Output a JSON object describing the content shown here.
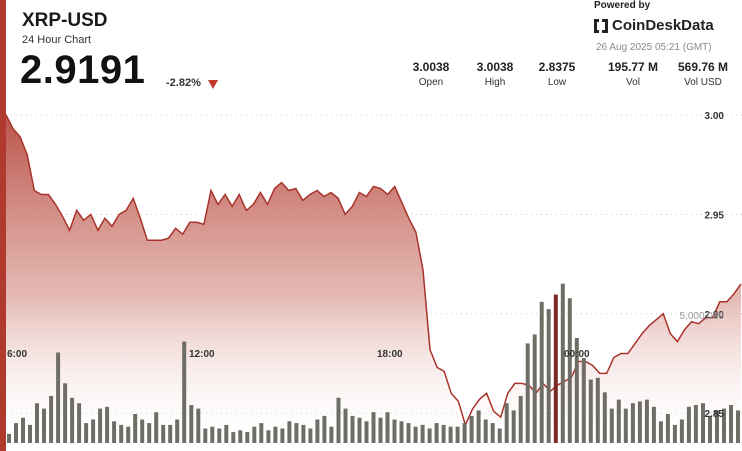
{
  "header": {
    "symbol": "XRP-USD",
    "subtitle": "24 Hour Chart",
    "price": "2.9191",
    "change": "-2.82%",
    "powered_by": "Powered by",
    "brand": "CoinDeskData",
    "timestamp": "26 Aug 2025 05:21 (GMT)"
  },
  "stats": [
    {
      "value": "3.0038",
      "label": "Open"
    },
    {
      "value": "3.0038",
      "label": "High"
    },
    {
      "value": "2.8375",
      "label": "Low"
    },
    {
      "value": "195.77 M",
      "label": "Vol"
    },
    {
      "value": "569.76 M",
      "label": "Vol USD"
    }
  ],
  "colors": {
    "accent": "#b03a2e",
    "down": "#c0392b",
    "volume_bar": "#6e6e66",
    "volume_highlight": "#7a2a22"
  },
  "chart_data": {
    "type": "area",
    "x_tick_labels": [
      "6:00",
      "12:00",
      "18:00",
      "00:00"
    ],
    "y_tick_labels": [
      "3.00",
      "2.95",
      "2.90",
      "2.85"
    ],
    "ylim": [
      2.835,
      3.005
    ],
    "volume_label": "5,000,000",
    "price_series": [
      3.0,
      2.993,
      2.989,
      2.98,
      2.962,
      2.96,
      2.96,
      2.955,
      2.949,
      2.942,
      2.952,
      2.947,
      2.95,
      2.942,
      2.948,
      2.944,
      2.95,
      2.952,
      2.958,
      2.948,
      2.937,
      2.937,
      2.937,
      2.938,
      2.943,
      2.94,
      2.946,
      2.946,
      2.945,
      2.962,
      2.955,
      2.96,
      2.954,
      2.96,
      2.952,
      2.955,
      2.961,
      2.955,
      2.963,
      2.966,
      2.962,
      2.963,
      2.957,
      2.96,
      2.962,
      2.959,
      2.961,
      2.958,
      2.95,
      2.954,
      2.961,
      2.959,
      2.964,
      2.963,
      2.96,
      2.964,
      2.956,
      2.948,
      2.941,
      2.922,
      2.882,
      2.873,
      2.871,
      2.86,
      2.856,
      2.844,
      2.852,
      2.857,
      2.86,
      2.851,
      2.848,
      2.86,
      2.865,
      2.865,
      2.864,
      2.86,
      2.865,
      2.861,
      2.864,
      2.866,
      2.868,
      2.876,
      2.876,
      2.874,
      2.87,
      2.87,
      2.878,
      2.88,
      2.88,
      2.885,
      2.89,
      2.894,
      2.897,
      2.9,
      2.89,
      2.886,
      2.892,
      2.896,
      2.895,
      2.898,
      2.898,
      2.906,
      2.906,
      2.91,
      2.915
    ],
    "volume_series": [
      0.05,
      0.11,
      0.14,
      0.1,
      0.22,
      0.19,
      0.26,
      0.5,
      0.33,
      0.25,
      0.22,
      0.11,
      0.13,
      0.19,
      0.2,
      0.12,
      0.1,
      0.09,
      0.16,
      0.13,
      0.11,
      0.17,
      0.1,
      0.1,
      0.13,
      0.56,
      0.21,
      0.19,
      0.08,
      0.09,
      0.08,
      0.1,
      0.06,
      0.07,
      0.06,
      0.09,
      0.11,
      0.07,
      0.09,
      0.08,
      0.12,
      0.11,
      0.1,
      0.08,
      0.13,
      0.15,
      0.09,
      0.25,
      0.19,
      0.15,
      0.14,
      0.12,
      0.17,
      0.14,
      0.17,
      0.13,
      0.12,
      0.11,
      0.09,
      0.1,
      0.08,
      0.11,
      0.1,
      0.09,
      0.09,
      0.11,
      0.15,
      0.18,
      0.13,
      0.11,
      0.08,
      0.22,
      0.18,
      0.26,
      0.55,
      0.6,
      0.78,
      0.74,
      0.82,
      0.88,
      0.8,
      0.58,
      0.47,
      0.35,
      0.36,
      0.28,
      0.19,
      0.24,
      0.19,
      0.22,
      0.23,
      0.24,
      0.2,
      0.12,
      0.16,
      0.1,
      0.13,
      0.2,
      0.21,
      0.22,
      0.15,
      0.18,
      0.19,
      0.21,
      0.18
    ]
  }
}
